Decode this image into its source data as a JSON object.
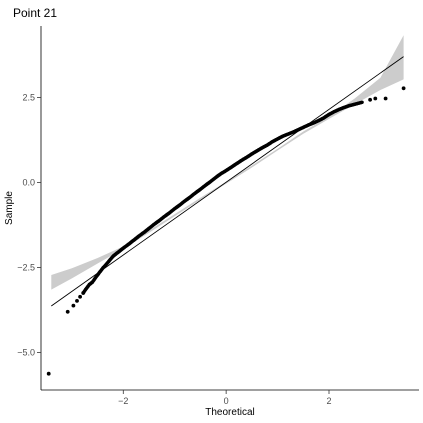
{
  "chart_data": {
    "type": "scatter",
    "title": "Point 21",
    "xlabel": "Theoretical",
    "ylabel": "Sample",
    "xlim": [
      -3.6,
      3.75
    ],
    "ylim": [
      -6.1,
      4.6
    ],
    "x_ticks": [
      -2,
      0,
      2
    ],
    "x_tick_labels": [
      "−2",
      "0",
      "2"
    ],
    "y_ticks": [
      -5,
      -2.5,
      0,
      2.5
    ],
    "y_tick_labels": [
      "−5.0",
      "−2.5",
      "0.0",
      "2.5"
    ],
    "grid": false,
    "reference_line": {
      "from": [
        -3.4,
        -3.63
      ],
      "to": [
        3.45,
        3.7
      ]
    },
    "confidence_band": {
      "x": [
        -3.4,
        -3.0,
        -2.5,
        -2.0,
        -1.5,
        -1.0,
        -0.5,
        0.0,
        0.5,
        1.0,
        1.5,
        2.0,
        2.5,
        3.0,
        3.45
      ],
      "lower": [
        -3.15,
        -2.82,
        -2.38,
        -1.95,
        -1.48,
        -0.99,
        -0.51,
        -0.04,
        0.44,
        0.94,
        1.43,
        1.87,
        2.3,
        2.72,
        3.03
      ],
      "upper": [
        -2.72,
        -2.52,
        -2.22,
        -1.88,
        -1.41,
        -0.93,
        -0.45,
        0.02,
        0.5,
        0.99,
        1.5,
        1.94,
        2.47,
        3.08,
        4.33
      ]
    },
    "points": {
      "x": [
        -3.45,
        -3.08,
        -2.97,
        -2.9,
        -2.84,
        -2.78,
        -2.72,
        -2.66,
        -2.6,
        -2.55,
        -2.5,
        -2.45,
        -2.4,
        -2.35,
        -2.3,
        -2.25,
        -2.2,
        -2.1,
        -2.0,
        -1.9,
        -1.8,
        -1.7,
        -1.6,
        -1.5,
        -1.4,
        -1.3,
        -1.2,
        -1.1,
        -1.0,
        -0.9,
        -0.8,
        -0.7,
        -0.6,
        -0.5,
        -0.4,
        -0.3,
        -0.2,
        -0.1,
        0.0,
        0.1,
        0.2,
        0.3,
        0.4,
        0.5,
        0.6,
        0.7,
        0.8,
        0.9,
        1.0,
        1.1,
        1.2,
        1.3,
        1.4,
        1.5,
        1.6,
        1.7,
        1.8,
        1.9,
        2.0,
        2.1,
        2.2,
        2.3,
        2.4,
        2.5,
        2.6,
        2.7,
        2.8,
        2.9,
        3.1,
        3.45
      ],
      "y": [
        -5.62,
        -3.8,
        -3.62,
        -3.48,
        -3.36,
        -3.25,
        -3.12,
        -3.0,
        -2.93,
        -2.82,
        -2.72,
        -2.62,
        -2.52,
        -2.44,
        -2.35,
        -2.26,
        -2.17,
        -2.05,
        -1.93,
        -1.82,
        -1.7,
        -1.58,
        -1.47,
        -1.35,
        -1.23,
        -1.12,
        -1.0,
        -0.89,
        -0.77,
        -0.66,
        -0.54,
        -0.43,
        -0.31,
        -0.2,
        -0.08,
        0.03,
        0.15,
        0.26,
        0.35,
        0.45,
        0.55,
        0.65,
        0.74,
        0.84,
        0.93,
        1.02,
        1.1,
        1.2,
        1.28,
        1.36,
        1.42,
        1.48,
        1.55,
        1.62,
        1.69,
        1.75,
        1.82,
        1.9,
        2.0,
        2.08,
        2.15,
        2.21,
        2.26,
        2.3,
        2.34,
        2.38,
        2.43,
        2.47,
        2.47,
        2.77
      ]
    },
    "colors": {
      "points": "#000000",
      "line": "#000000",
      "band": "#cccccc"
    }
  }
}
